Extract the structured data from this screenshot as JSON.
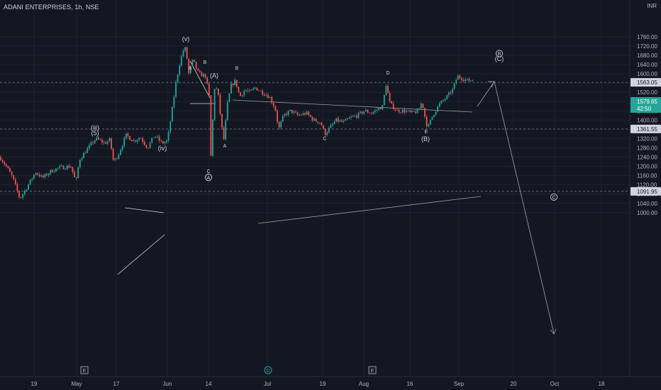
{
  "header": {
    "symbol_title": "ADANI ENTERPRISES, 1h, NSE",
    "currency": "INR"
  },
  "chart_data": {
    "type": "candlestick",
    "title": "ADANI ENTERPRISES, 1h, NSE",
    "ylim": [
      990,
      1780
    ],
    "y_ticks": [
      "1000.00",
      "1040.00",
      "1080.00",
      "1120.00",
      "1160.00",
      "1200.00",
      "1240.00",
      "1280.00",
      "1320.00",
      "1360.00",
      "1400.00",
      "1440.00",
      "1480.00",
      "1520.00",
      "1560.00",
      "1600.00",
      "1640.00",
      "1680.00",
      "1720.00",
      "1760.00"
    ],
    "x_ticks": [
      "19",
      "May",
      "17",
      "Jun",
      "14",
      "Jul",
      "19",
      "Aug",
      "16",
      "Sep",
      "20",
      "Oct",
      "18"
    ],
    "price_labels": {
      "last_price": "1579.65",
      "countdown": "42:50",
      "line_1563": "1563.05",
      "line_1361": "1361.55",
      "line_1091": "1091.95"
    },
    "colors": {
      "up": "#26a69a",
      "down": "#ef5350",
      "background": "#131722",
      "grid": "#1e222d",
      "text": "#b2b5be",
      "annotation": "#9598a1"
    },
    "path_points": [
      {
        "x": 0,
        "y": 1240
      },
      {
        "x": 10,
        "y": 1195
      },
      {
        "x": 18,
        "y": 1150
      },
      {
        "x": 28,
        "y": 1060
      },
      {
        "x": 38,
        "y": 1110
      },
      {
        "x": 50,
        "y": 1175
      },
      {
        "x": 60,
        "y": 1150
      },
      {
        "x": 72,
        "y": 1180
      },
      {
        "x": 85,
        "y": 1195
      },
      {
        "x": 100,
        "y": 1200
      },
      {
        "x": 107,
        "y": 1130
      },
      {
        "x": 112,
        "y": 1230
      },
      {
        "x": 122,
        "y": 1270
      },
      {
        "x": 135,
        "y": 1320
      },
      {
        "x": 148,
        "y": 1300
      },
      {
        "x": 155,
        "y": 1315
      },
      {
        "x": 160,
        "y": 1220
      },
      {
        "x": 166,
        "y": 1245
      },
      {
        "x": 172,
        "y": 1290
      },
      {
        "x": 178,
        "y": 1335
      },
      {
        "x": 188,
        "y": 1310
      },
      {
        "x": 198,
        "y": 1325
      },
      {
        "x": 208,
        "y": 1280
      },
      {
        "x": 218,
        "y": 1335
      },
      {
        "x": 228,
        "y": 1300
      },
      {
        "x": 236,
        "y": 1310
      },
      {
        "x": 242,
        "y": 1430
      },
      {
        "x": 248,
        "y": 1560
      },
      {
        "x": 253,
        "y": 1640
      },
      {
        "x": 258,
        "y": 1700
      },
      {
        "x": 262,
        "y": 1710
      },
      {
        "x": 266,
        "y": 1600
      },
      {
        "x": 272,
        "y": 1660
      },
      {
        "x": 280,
        "y": 1600
      },
      {
        "x": 290,
        "y": 1590
      },
      {
        "x": 296,
        "y": 1480
      },
      {
        "x": 297,
        "y": 1220
      },
      {
        "x": 300,
        "y": 1400
      },
      {
        "x": 303,
        "y": 1560
      },
      {
        "x": 308,
        "y": 1500
      },
      {
        "x": 312,
        "y": 1380
      },
      {
        "x": 316,
        "y": 1310
      },
      {
        "x": 320,
        "y": 1460
      },
      {
        "x": 326,
        "y": 1550
      },
      {
        "x": 332,
        "y": 1570
      },
      {
        "x": 338,
        "y": 1500
      },
      {
        "x": 345,
        "y": 1530
      },
      {
        "x": 352,
        "y": 1520
      },
      {
        "x": 360,
        "y": 1540
      },
      {
        "x": 370,
        "y": 1520
      },
      {
        "x": 380,
        "y": 1500
      },
      {
        "x": 388,
        "y": 1450
      },
      {
        "x": 393,
        "y": 1360
      },
      {
        "x": 400,
        "y": 1420
      },
      {
        "x": 410,
        "y": 1440
      },
      {
        "x": 420,
        "y": 1420
      },
      {
        "x": 432,
        "y": 1430
      },
      {
        "x": 442,
        "y": 1400
      },
      {
        "x": 452,
        "y": 1390
      },
      {
        "x": 458,
        "y": 1340
      },
      {
        "x": 466,
        "y": 1370
      },
      {
        "x": 474,
        "y": 1400
      },
      {
        "x": 484,
        "y": 1390
      },
      {
        "x": 494,
        "y": 1410
      },
      {
        "x": 504,
        "y": 1420
      },
      {
        "x": 514,
        "y": 1440
      },
      {
        "x": 524,
        "y": 1430
      },
      {
        "x": 534,
        "y": 1450
      },
      {
        "x": 540,
        "y": 1460
      },
      {
        "x": 544,
        "y": 1560
      },
      {
        "x": 550,
        "y": 1470
      },
      {
        "x": 560,
        "y": 1440
      },
      {
        "x": 570,
        "y": 1440
      },
      {
        "x": 580,
        "y": 1430
      },
      {
        "x": 590,
        "y": 1440
      },
      {
        "x": 595,
        "y": 1480
      },
      {
        "x": 600,
        "y": 1400
      },
      {
        "x": 603,
        "y": 1365
      },
      {
        "x": 610,
        "y": 1420
      },
      {
        "x": 620,
        "y": 1470
      },
      {
        "x": 630,
        "y": 1500
      },
      {
        "x": 638,
        "y": 1530
      },
      {
        "x": 645,
        "y": 1590
      },
      {
        "x": 652,
        "y": 1580
      },
      {
        "x": 660,
        "y": 1570
      },
      {
        "x": 668,
        "y": 1575
      }
    ],
    "annotations": [
      {
        "text": "(v)",
        "x": 262,
        "y": 1750,
        "style": "plain"
      },
      {
        "text": "B",
        "x": 289,
        "y": 1653,
        "style": "plain"
      },
      {
        "text": "A",
        "x": 268,
        "y": 1626,
        "style": "plain"
      },
      {
        "text": "(A)",
        "x": 302,
        "y": 1593,
        "style": "plain"
      },
      {
        "text": "B",
        "x": 334,
        "y": 1627,
        "style": "plain"
      },
      {
        "text": "D",
        "x": 547,
        "y": 1606,
        "style": "plain"
      },
      {
        "text": "(iii)",
        "x": 134,
        "y": 1368,
        "style": "plain"
      },
      {
        "text": "(5)",
        "x": 134,
        "y": 1344,
        "style": "plain"
      },
      {
        "text": "(iv)",
        "x": 229,
        "y": 1278,
        "style": "plain"
      },
      {
        "text": "A",
        "x": 317,
        "y": 1290,
        "style": "plain"
      },
      {
        "text": "C",
        "x": 294,
        "y": 1180,
        "style": "plain"
      },
      {
        "text": "A",
        "x": 294,
        "y": 1152,
        "style": "circle"
      },
      {
        "text": "C",
        "x": 458,
        "y": 1323,
        "style": "plain"
      },
      {
        "text": "E",
        "x": 601,
        "y": 1352,
        "style": "plain"
      },
      {
        "text": "(B)",
        "x": 600,
        "y": 1318,
        "style": "plain"
      },
      {
        "text": "B",
        "x": 704,
        "y": 1688,
        "style": "circle"
      },
      {
        "text": "(C)",
        "x": 704,
        "y": 1665,
        "style": "plain"
      },
      {
        "text": "C",
        "x": 781,
        "y": 1067,
        "style": "circle"
      }
    ],
    "bottom_markers": [
      "E",
      "D",
      "E"
    ]
  }
}
